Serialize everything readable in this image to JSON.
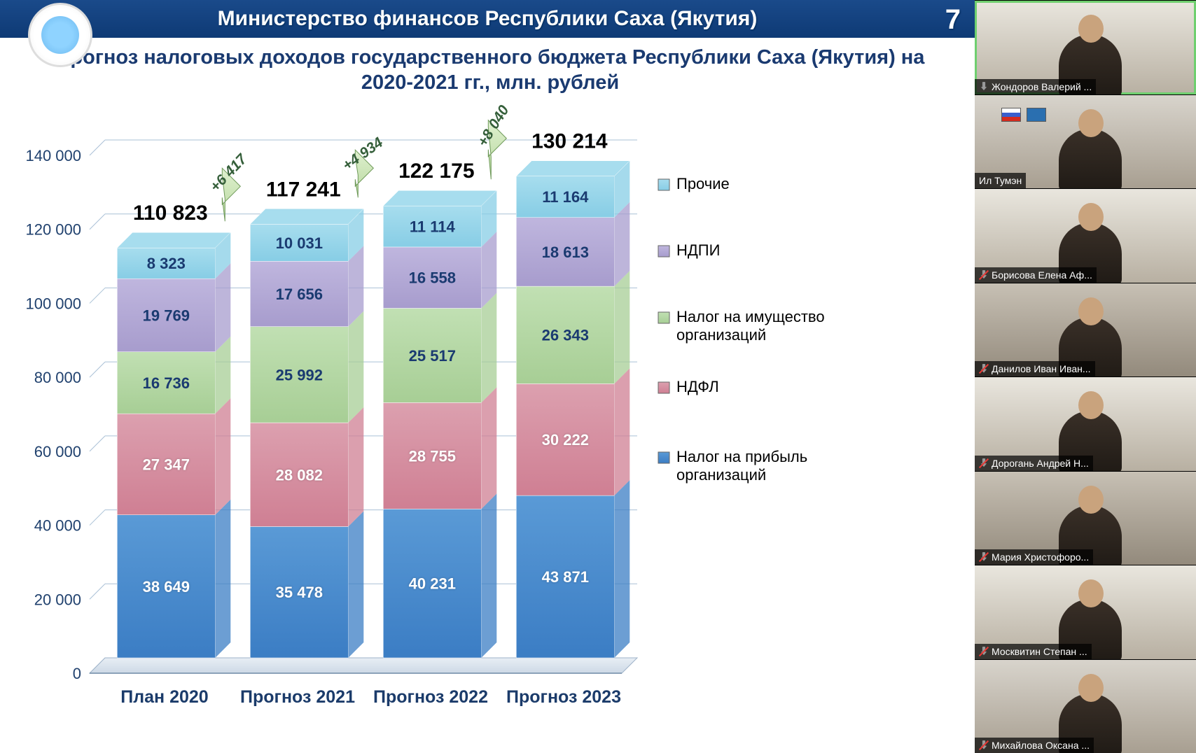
{
  "slide": {
    "pageNumber": "7",
    "headerTitle": "Министерство финансов Республики Саха (Якутия)",
    "chartTitle": "Прогноз налоговых доходов государственного бюджета Республики Саха (Якутия) на 2020-2021 гг., млн. рублей"
  },
  "chart": {
    "type": "stacked-bar",
    "ylim": [
      0,
      140000
    ],
    "ytick_step": 20000,
    "yticks": [
      "0",
      "20 000",
      "40 000",
      "60 000",
      "80 000",
      "100 000",
      "120 000",
      "140 000"
    ],
    "gridColor": "#a9c0d6",
    "backgroundColor": "#ffffff",
    "axisFontSize": 22,
    "catFontSize": 25,
    "categories": [
      "План 2020",
      "Прогноз 2021",
      "Прогноз 2022",
      "Прогноз 2023"
    ],
    "totals": [
      "110 823",
      "117 241",
      "122 175",
      "130 214"
    ],
    "deltas": [
      "+6 417",
      "+4 934",
      "+8 040"
    ],
    "series": [
      {
        "key": "profit",
        "name": "Налог на прибыль организаций",
        "color": "#3b7dc4",
        "colorTop": "#5a9ad6"
      },
      {
        "key": "ndfl",
        "name": "НДФЛ",
        "color": "#cf7f93",
        "colorTop": "#dca0af"
      },
      {
        "key": "property",
        "name": "Налог на имущество организаций",
        "color": "#a7ce95",
        "colorTop": "#c1e0b3"
      },
      {
        "key": "ndpi",
        "name": "НДПИ",
        "color": "#a79ccd",
        "colorTop": "#bfb6de"
      },
      {
        "key": "other",
        "name": "Прочие",
        "color": "#87cde5",
        "colorTop": "#a7ddee"
      }
    ],
    "data": [
      {
        "profit": 38649,
        "ndfl": 27347,
        "property": 16736,
        "ndpi": 19769,
        "other": 8323,
        "labels": {
          "profit": "38 649",
          "ndfl": "27 347",
          "property": "16 736",
          "ndpi": "19 769",
          "other": "8 323"
        }
      },
      {
        "profit": 35478,
        "ndfl": 28082,
        "property": 25992,
        "ndpi": 17656,
        "other": 10031,
        "labels": {
          "profit": "35 478",
          "ndfl": "28 082",
          "property": "25 992",
          "ndpi": "17 656",
          "other": "10 031"
        }
      },
      {
        "profit": 40231,
        "ndfl": 28755,
        "property": 25517,
        "ndpi": 16558,
        "other": 11114,
        "labels": {
          "profit": "40 231",
          "ndfl": "28 755",
          "property": "25 517",
          "ndpi": "16 558",
          "other": "11 114"
        }
      },
      {
        "profit": 43871,
        "ndfl": 30222,
        "property": 26343,
        "ndpi": 18613,
        "other": 11164,
        "labels": {
          "profit": "43 871",
          "ndfl": "30 222",
          "property": "26 343",
          "ndpi": "18 613",
          "other": "11 164"
        }
      }
    ],
    "barWidthPx": 140,
    "plotLeftPx": 120,
    "plotRightPx": 880,
    "plotTopPx": 50,
    "plotBottomPx": 790,
    "floorDepthPx": 22,
    "legendX": 910,
    "legendYs": [
      120,
      215,
      310,
      410,
      510
    ]
  },
  "participants": [
    {
      "name": "Жондоров Валерий ...",
      "muted": true,
      "muteRed": false,
      "active": true,
      "bg": "office"
    },
    {
      "name": "Ил Тумэн",
      "muted": false,
      "muteRed": false,
      "active": false,
      "bg": "meeting"
    },
    {
      "name": "Борисова Елена Аф...",
      "muted": true,
      "muteRed": true,
      "active": false,
      "bg": "office"
    },
    {
      "name": "Данилов Иван Иван...",
      "muted": true,
      "muteRed": true,
      "active": false,
      "bg": "room"
    },
    {
      "name": "Дорогань Андрей Н...",
      "muted": true,
      "muteRed": true,
      "active": false,
      "bg": "office"
    },
    {
      "name": "Мария Христофоро...",
      "muted": true,
      "muteRed": true,
      "active": false,
      "bg": "room"
    },
    {
      "name": "Москвитин Степан ...",
      "muted": true,
      "muteRed": true,
      "active": false,
      "bg": "office"
    },
    {
      "name": "Михайлова Оксана ...",
      "muted": true,
      "muteRed": true,
      "active": false,
      "bg": "meeting"
    }
  ]
}
